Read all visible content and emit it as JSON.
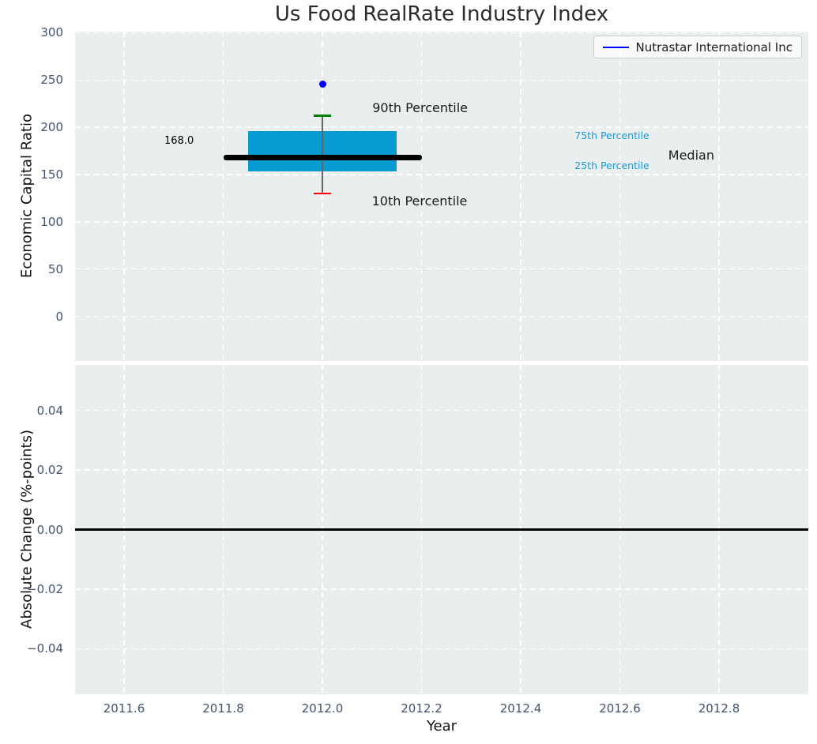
{
  "chart_data": [
    {
      "type": "boxplot",
      "title": "Us Food RealRate Industry Index",
      "ylabel": "Economic Capital Ratio",
      "xlim": [
        2011.5,
        2012.98
      ],
      "ylim": [
        -45,
        300
      ],
      "grid": true,
      "plot_bg": "#eaeeef",
      "grid_color": "#ffffff",
      "tick_color": "#42526b",
      "legend_position": "upper right",
      "legend": [
        {
          "label": "Nutrastar International Inc",
          "color": "#0000ff"
        }
      ],
      "yticks": [
        {
          "label": "300",
          "v": 300
        },
        {
          "label": "250",
          "v": 250
        },
        {
          "label": "200",
          "v": 200
        },
        {
          "label": "150",
          "v": 150
        },
        {
          "label": "100",
          "v": 100
        },
        {
          "label": "50",
          "v": 50
        },
        {
          "label": "0",
          "v": 0
        }
      ],
      "box": {
        "x": 2012,
        "median": 168.0,
        "q1": 153,
        "q3": 196,
        "p10": 130,
        "p90": 212,
        "box_halfwidth": 0.15,
        "median_halfwidth": 0.2,
        "cap_halfwidth": 0.017,
        "box_color": "#089bd1",
        "median_color": "#000000",
        "whisker_color": "#666666",
        "p90_cap_color": "#008000",
        "p10_cap_color": "#ff0000"
      },
      "company_point": {
        "x": 2012,
        "y": 246,
        "color": "#0000ff"
      },
      "annotations": [
        {
          "text": "168.0",
          "x": 2011.711,
          "y": 185,
          "color": "#000000",
          "size": 13
        },
        {
          "text": "90th Percentile",
          "x": 2012.197,
          "y": 220,
          "color": "#1a1a1a",
          "size": 16
        },
        {
          "text": "10th Percentile",
          "x": 2012.196,
          "y": 122,
          "color": "#1a1a1a",
          "size": 16
        },
        {
          "text": "75th Percentile",
          "x": 2012.584,
          "y": 191,
          "color": "#1b9ad1",
          "size": 12.5
        },
        {
          "text": "25th Percentile",
          "x": 2012.584,
          "y": 159,
          "color": "#1b9ad1",
          "size": 12.5
        },
        {
          "text": "Median",
          "x": 2012.744,
          "y": 170,
          "color": "#1a1a1a",
          "size": 16
        }
      ]
    },
    {
      "type": "line",
      "ylabel": "Absolute Change (%-points)",
      "xlabel": "Year",
      "xlim": [
        2011.5,
        2012.98
      ],
      "ylim": [
        -0.055,
        0.055
      ],
      "grid": true,
      "plot_bg": "#eaeeef",
      "grid_color": "#ffffff",
      "tick_color": "#42526b",
      "yticks": [
        {
          "label": "0.04",
          "v": 0.04
        },
        {
          "label": "0.02",
          "v": 0.02
        },
        {
          "label": "0.00",
          "v": 0.0
        },
        {
          "label": "−0.02",
          "v": -0.02
        },
        {
          "label": "−0.04",
          "v": -0.04
        }
      ],
      "xticks": [
        {
          "label": "2011.6",
          "v": 2011.6
        },
        {
          "label": "2011.8",
          "v": 2011.8
        },
        {
          "label": "2012.0",
          "v": 2012.0
        },
        {
          "label": "2012.2",
          "v": 2012.2
        },
        {
          "label": "2012.4",
          "v": 2012.4
        },
        {
          "label": "2012.6",
          "v": 2012.6
        },
        {
          "label": "2012.8",
          "v": 2012.8
        }
      ],
      "zero_line": {
        "y": 0.0,
        "color": "#000000"
      },
      "series": []
    }
  ]
}
